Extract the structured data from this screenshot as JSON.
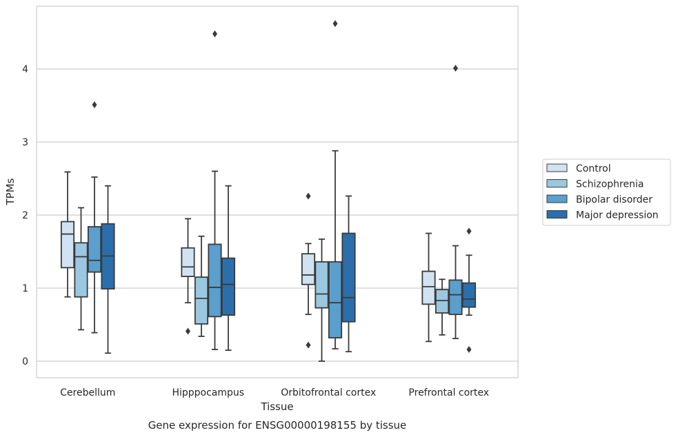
{
  "chart_data": {
    "type": "box",
    "caption": "Gene expression for ENSG00000198155 by tissue",
    "xlabel": "Tissue",
    "ylabel": "TPMs",
    "ylim": [
      -0.22,
      4.85
    ],
    "yticks": [
      0,
      1,
      2,
      3,
      4
    ],
    "ytick_labels": [
      "0",
      "1",
      "2",
      "3",
      "4"
    ],
    "grid": "horizontal",
    "legend_position": "right",
    "categories": [
      "Cerebellum",
      "Hipppocampus",
      "Orbitofrontal cortex",
      "Prefrontal cortex"
    ],
    "series": [
      {
        "name": "Control",
        "color": "#d1e2f2",
        "boxes": [
          {
            "whisker_low": 0.88,
            "q1": 1.28,
            "median": 1.74,
            "q3": 1.91,
            "whisker_high": 2.59,
            "outliers": []
          },
          {
            "whisker_low": 0.8,
            "q1": 1.16,
            "median": 1.29,
            "q3": 1.55,
            "whisker_high": 1.95,
            "outliers": [
              0.41
            ]
          },
          {
            "whisker_low": 0.64,
            "q1": 1.05,
            "median": 1.18,
            "q3": 1.47,
            "whisker_high": 1.61,
            "outliers": [
              2.26,
              0.22
            ]
          },
          {
            "whisker_low": 0.27,
            "q1": 0.78,
            "median": 1.02,
            "q3": 1.23,
            "whisker_high": 1.75,
            "outliers": []
          }
        ]
      },
      {
        "name": "Schizophrenia",
        "color": "#9ac8e0",
        "boxes": [
          {
            "whisker_low": 0.43,
            "q1": 0.88,
            "median": 1.43,
            "q3": 1.62,
            "whisker_high": 2.1,
            "outliers": []
          },
          {
            "whisker_low": 0.34,
            "q1": 0.51,
            "median": 0.86,
            "q3": 1.15,
            "whisker_high": 1.71,
            "outliers": []
          },
          {
            "whisker_low": 0.0,
            "q1": 0.73,
            "median": 0.92,
            "q3": 1.36,
            "whisker_high": 1.67,
            "outliers": []
          },
          {
            "whisker_low": 0.36,
            "q1": 0.66,
            "median": 0.83,
            "q3": 0.98,
            "whisker_high": 1.12,
            "outliers": []
          }
        ]
      },
      {
        "name": "Bipolar disorder",
        "color": "#5a9fcd",
        "boxes": [
          {
            "whisker_low": 0.39,
            "q1": 1.22,
            "median": 1.38,
            "q3": 1.84,
            "whisker_high": 2.52,
            "outliers": [
              3.51
            ]
          },
          {
            "whisker_low": 0.16,
            "q1": 0.61,
            "median": 1.01,
            "q3": 1.6,
            "whisker_high": 2.6,
            "outliers": [
              4.48
            ]
          },
          {
            "whisker_low": 0.17,
            "q1": 0.32,
            "median": 0.8,
            "q3": 1.36,
            "whisker_high": 2.88,
            "outliers": [
              4.62
            ]
          },
          {
            "whisker_low": 0.31,
            "q1": 0.64,
            "median": 0.91,
            "q3": 1.11,
            "whisker_high": 1.58,
            "outliers": [
              4.01
            ]
          }
        ]
      },
      {
        "name": "Major depression",
        "color": "#2b6eac",
        "boxes": [
          {
            "whisker_low": 0.11,
            "q1": 0.99,
            "median": 1.44,
            "q3": 1.88,
            "whisker_high": 2.4,
            "outliers": []
          },
          {
            "whisker_low": 0.15,
            "q1": 0.63,
            "median": 1.05,
            "q3": 1.41,
            "whisker_high": 2.4,
            "outliers": []
          },
          {
            "whisker_low": 0.13,
            "q1": 0.54,
            "median": 0.87,
            "q3": 1.75,
            "whisker_high": 2.26,
            "outliers": []
          },
          {
            "whisker_low": 0.63,
            "q1": 0.74,
            "median": 0.85,
            "q3": 1.07,
            "whisker_high": 1.45,
            "outliers": [
              1.78,
              0.16
            ]
          }
        ]
      }
    ]
  }
}
